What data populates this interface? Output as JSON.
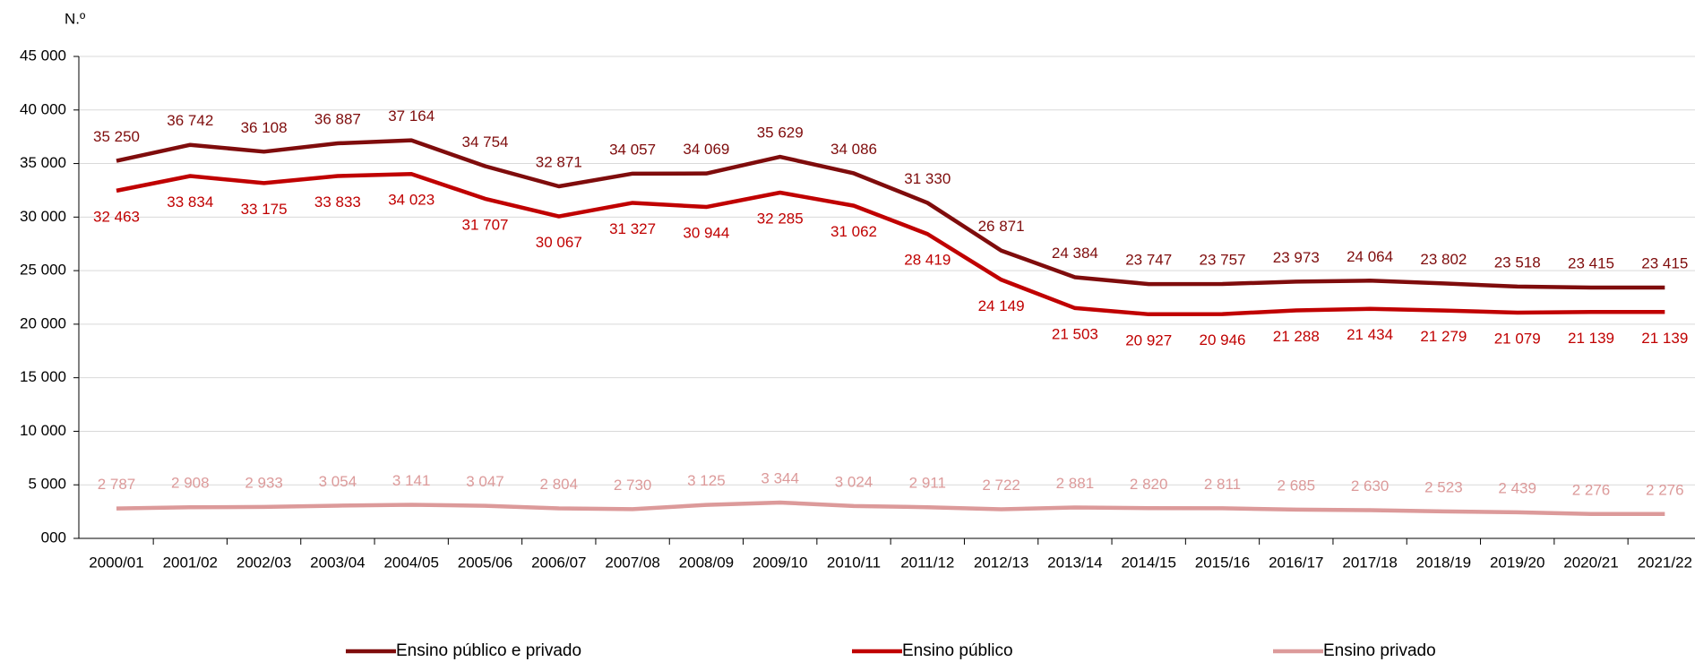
{
  "chart_data": {
    "type": "line",
    "y_label": "N.º",
    "categories": [
      "2000/01",
      "2001/02",
      "2002/03",
      "2003/04",
      "2004/05",
      "2005/06",
      "2006/07",
      "2007/08",
      "2008/09",
      "2009/10",
      "2010/11",
      "2011/12",
      "2012/13",
      "2013/14",
      "2014/15",
      "2015/16",
      "2016/17",
      "2017/18",
      "2018/19",
      "2019/20",
      "2020/21",
      "2021/22"
    ],
    "series": [
      {
        "name": "Ensino público e privado",
        "color": "#7f0c0c",
        "label_side": "above",
        "values": [
          35250,
          36742,
          36108,
          36887,
          37164,
          34754,
          32871,
          34057,
          34069,
          35629,
          34086,
          31330,
          26871,
          24384,
          23747,
          23757,
          23973,
          24064,
          23802,
          23518,
          23415,
          23415
        ],
        "value_labels": [
          "35 250",
          "36 742",
          "36 108",
          "36 887",
          "37 164",
          "34 754",
          "32 871",
          "34 057",
          "34 069",
          "35 629",
          "34 086",
          "31 330",
          "26 871",
          "24 384",
          "23 747",
          "23 757",
          "23 973",
          "24 064",
          "23 802",
          "23 518",
          "23 415",
          "23 415"
        ]
      },
      {
        "name": "Ensino público",
        "color": "#c00000",
        "label_side": "below",
        "values": [
          32463,
          33834,
          33175,
          33833,
          34023,
          31707,
          30067,
          31327,
          30944,
          32285,
          31062,
          28419,
          24149,
          21503,
          20927,
          20946,
          21288,
          21434,
          21279,
          21079,
          21139,
          21139
        ],
        "value_labels": [
          "32 463",
          "33 834",
          "33 175",
          "33 833",
          "34 023",
          "31 707",
          "30 067",
          "31 327",
          "30 944",
          "32 285",
          "31 062",
          "28 419",
          "24 149",
          "21 503",
          "20 927",
          "20 946",
          "21 288",
          "21 434",
          "21 279",
          "21 079",
          "21 139",
          "21 139"
        ]
      },
      {
        "name": "Ensino privado",
        "color": "#dc9a9a",
        "label_side": "above",
        "values": [
          2787,
          2908,
          2933,
          3054,
          3141,
          3047,
          2804,
          2730,
          3125,
          3344,
          3024,
          2911,
          2722,
          2881,
          2820,
          2811,
          2685,
          2630,
          2523,
          2439,
          2276,
          2276
        ],
        "value_labels": [
          "2 787",
          "2 908",
          "2 933",
          "3 054",
          "3 141",
          "3 047",
          "2 804",
          "2 730",
          "3 125",
          "3 344",
          "3 024",
          "2 911",
          "2 722",
          "2 881",
          "2 820",
          "2 811",
          "2 685",
          "2 630",
          "2 523",
          "2 439",
          "2 276",
          "2 276"
        ]
      }
    ],
    "ylim": [
      0,
      45000
    ],
    "yticks": [
      {
        "value": 0,
        "label": "000"
      },
      {
        "value": 5000,
        "label": "5 000"
      },
      {
        "value": 10000,
        "label": "10 000"
      },
      {
        "value": 15000,
        "label": "15 000"
      },
      {
        "value": 20000,
        "label": "20 000"
      },
      {
        "value": 25000,
        "label": "25 000"
      },
      {
        "value": 30000,
        "label": "30 000"
      },
      {
        "value": 35000,
        "label": "35 000"
      },
      {
        "value": 40000,
        "label": "40 000"
      },
      {
        "value": 45000,
        "label": "45 000"
      }
    ],
    "grid": true,
    "legend": "bottom"
  }
}
